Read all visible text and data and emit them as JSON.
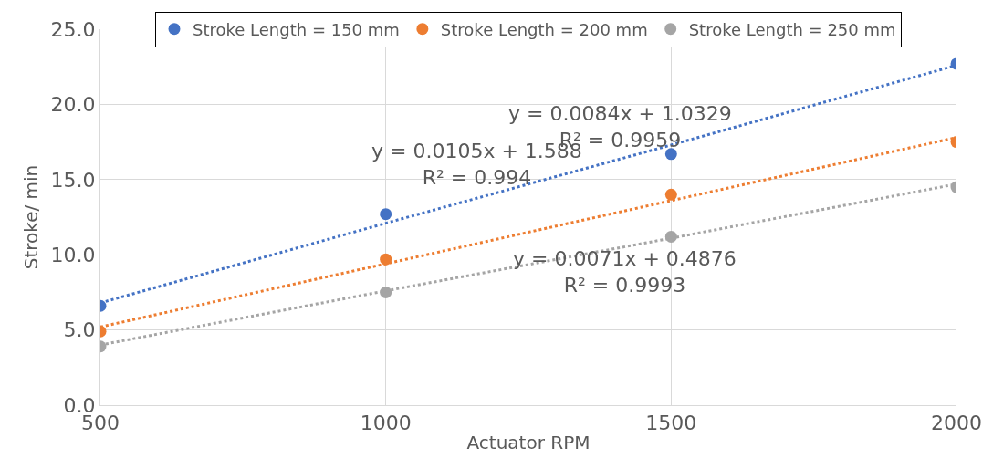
{
  "chart_data": {
    "type": "scatter",
    "xlabel": "Actuator RPM",
    "ylabel": "Stroke/ min",
    "x": [
      500,
      1000,
      1500,
      2000
    ],
    "series": [
      {
        "name": "Stroke Length = 150 mm",
        "color": "#4472c4",
        "values": [
          6.6,
          12.7,
          16.7,
          22.7
        ],
        "marker": "circle"
      },
      {
        "name": "Stroke Length = 200 mm",
        "color": "#ed7d31",
        "values": [
          4.9,
          9.7,
          14.0,
          17.5
        ],
        "marker": "circle"
      },
      {
        "name": "Stroke Length = 250 mm",
        "color": "#a5a5a5",
        "values": [
          3.9,
          7.5,
          11.2,
          14.5
        ],
        "marker": "circle"
      },
      {
        "type": "line",
        "color": "#4472c4",
        "values": [
          6.8,
          12.1,
          17.3,
          22.6
        ],
        "marker": "none",
        "line_style": "dotted"
      },
      {
        "type": "line",
        "color": "#ed7d31",
        "values": [
          5.2,
          9.4,
          13.6,
          17.8
        ],
        "marker": "none",
        "line_style": "dotted"
      },
      {
        "type": "line",
        "color": "#a5a5a5",
        "values": [
          4.0,
          7.6,
          11.1,
          14.7
        ],
        "marker": "none",
        "line_style": "dotted"
      }
    ],
    "annotations": [
      "y = 0.0105x + 1.588\nR² = 0.994",
      "y = 0.0084x + 1.0329\nR² = 0.9959",
      "y = 0.0071x + 0.4876\nR² = 0.9993"
    ],
    "xlim": [
      500,
      2000
    ],
    "xticks": [
      500,
      1000,
      1500,
      2000
    ],
    "ylim": [
      0,
      25
    ],
    "yticks": [
      {
        "value": 0,
        "label": "0.0"
      },
      {
        "value": 5,
        "label": "5.0"
      },
      {
        "value": 10,
        "label": "10.0"
      },
      {
        "value": 15,
        "label": "15.0"
      },
      {
        "value": 20,
        "label": "20.0"
      },
      {
        "value": 25,
        "label": "25.0"
      }
    ],
    "grid": true,
    "legend": "top"
  }
}
